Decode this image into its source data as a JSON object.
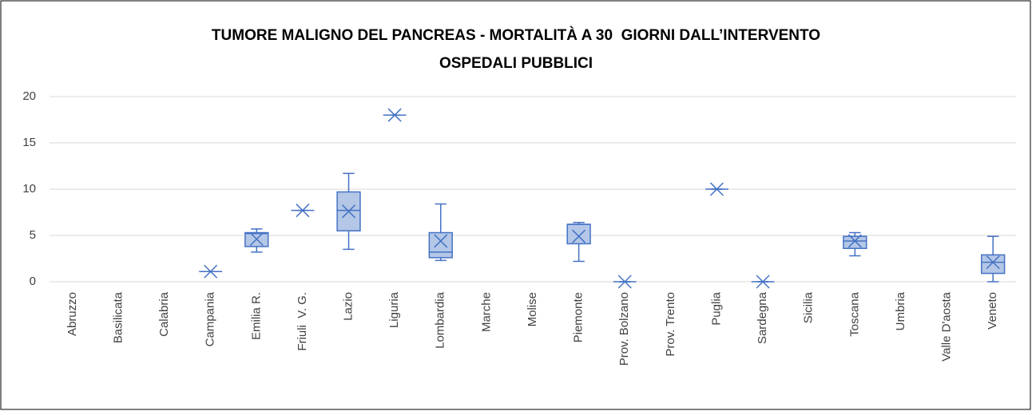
{
  "chart_data": {
    "type": "box",
    "title": "TUMORE MALIGNO DEL PANCREAS - MORTALITÀ A 30  GIORNI DALL’INTERVENTO",
    "subtitle": "OSPEDALI PUBBLICI",
    "categories": [
      "Abruzzo",
      "Basilicata",
      "Calabria",
      "Campania",
      "Emilia R.",
      "Friuli  V. G.",
      "Lazio",
      "Liguria",
      "Lombardia",
      "Marche",
      "Molise",
      "Piemonte",
      "Prov. Bolzano",
      "Prov. Trento",
      "Puglia",
      "Sardegna",
      "Sicilia",
      "Toscana",
      "Umbria",
      "Valle D'aosta",
      "Veneto"
    ],
    "min": [
      null,
      null,
      null,
      1.1,
      3.2,
      7.7,
      3.5,
      18,
      2.3,
      null,
      null,
      2.2,
      0,
      null,
      10,
      0,
      null,
      2.8,
      null,
      null,
      0
    ],
    "q1": [
      null,
      null,
      null,
      1.1,
      3.8,
      7.7,
      5.5,
      18,
      2.6,
      null,
      null,
      4.1,
      0,
      null,
      10,
      0,
      null,
      3.6,
      null,
      null,
      0.9
    ],
    "median": [
      null,
      null,
      null,
      1.1,
      5.2,
      7.7,
      7.7,
      18,
      3.2,
      null,
      null,
      6.2,
      0,
      null,
      10,
      0,
      null,
      4.4,
      null,
      null,
      2.1
    ],
    "q3": [
      null,
      null,
      null,
      1.1,
      5.3,
      7.7,
      9.7,
      18,
      5.3,
      null,
      null,
      6.2,
      0,
      null,
      10,
      0,
      null,
      4.9,
      null,
      null,
      2.9
    ],
    "max": [
      null,
      null,
      null,
      1.1,
      5.7,
      7.7,
      11.7,
      18,
      8.4,
      null,
      null,
      6.4,
      0,
      null,
      10,
      0,
      null,
      5.3,
      null,
      null,
      4.9
    ],
    "mean": [
      null,
      null,
      null,
      1.1,
      4.6,
      7.7,
      7.6,
      18,
      4.4,
      null,
      null,
      4.9,
      0,
      null,
      10,
      0,
      null,
      4.4,
      null,
      null,
      2.1
    ],
    "color": "#4472c4",
    "fill": "#b4c7e7",
    "ylim": [
      0,
      20
    ],
    "yticks": [
      0,
      5,
      10,
      15,
      20
    ],
    "grid": true
  }
}
